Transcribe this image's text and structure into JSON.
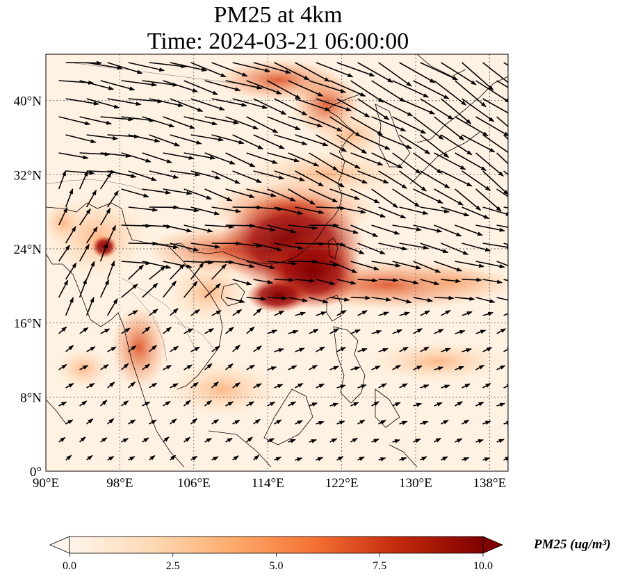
{
  "title_line1": "PM25 at 4km",
  "title_line2": "Time: 2024-03-21 06:00:00",
  "map": {
    "lon_range": [
      90,
      140
    ],
    "lat_range": [
      0,
      45
    ],
    "x_ticks": [
      {
        "value": 90,
        "label": "90°E"
      },
      {
        "value": 98,
        "label": "98°E"
      },
      {
        "value": 106,
        "label": "106°E"
      },
      {
        "value": 114,
        "label": "114°E"
      },
      {
        "value": 122,
        "label": "122°E"
      },
      {
        "value": 130,
        "label": "130°E"
      },
      {
        "value": 138,
        "label": "138°E"
      }
    ],
    "y_ticks": [
      {
        "value": 0,
        "label": "0°"
      },
      {
        "value": 8,
        "label": "8°N"
      },
      {
        "value": 16,
        "label": "16°N"
      },
      {
        "value": 24,
        "label": "24°N"
      },
      {
        "value": 32,
        "label": "32°N"
      },
      {
        "value": 40,
        "label": "40°N"
      }
    ],
    "gridlines": true
  },
  "colorbar": {
    "label": "PM25 (ug/m³)",
    "min": 0,
    "max": 10,
    "extend": "both",
    "ticks": [
      {
        "value": 0,
        "label": "0.0"
      },
      {
        "value": 2.5,
        "label": "2.5"
      },
      {
        "value": 5,
        "label": "5.0"
      },
      {
        "value": 7.5,
        "label": "7.5"
      },
      {
        "value": 10,
        "label": "10.0"
      }
    ],
    "colormap_stops": [
      "#fff5eb",
      "#fdd9b4",
      "#fdaa6a",
      "#f36f32",
      "#c1280b",
      "#7f0000"
    ]
  }
}
